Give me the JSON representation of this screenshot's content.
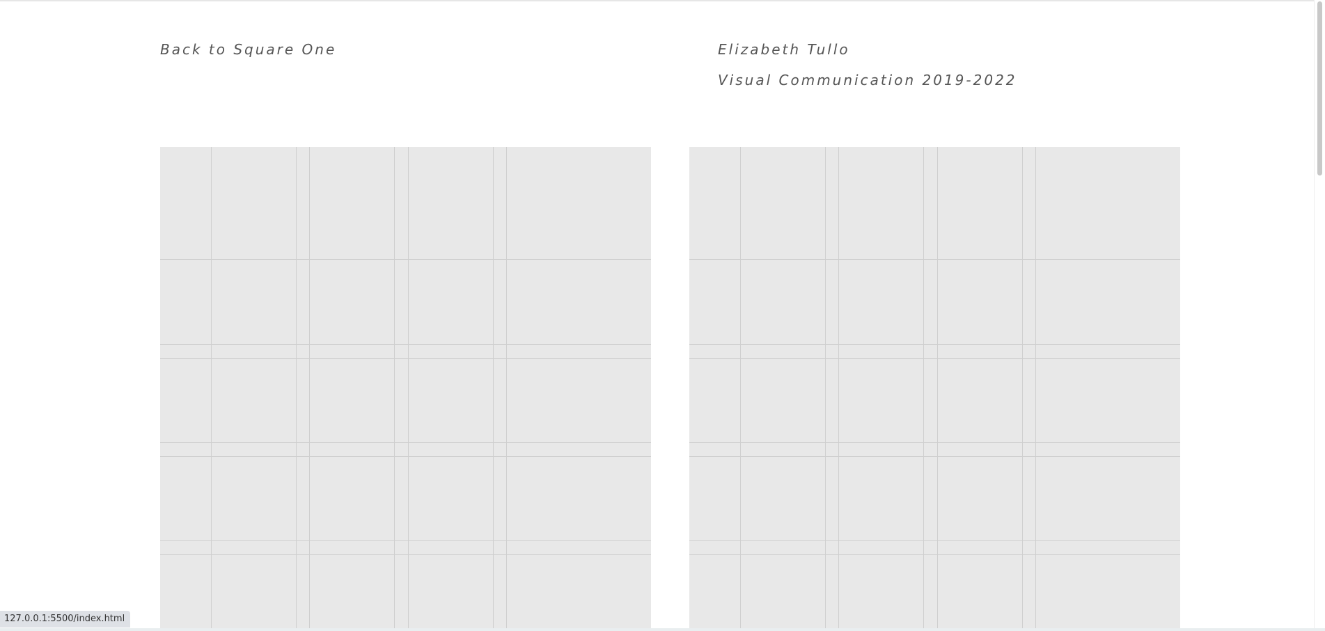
{
  "header": {
    "site_title": "Back to Square One",
    "author": "Elizabeth Tullo",
    "course": "Visual Communication 2019-2022"
  },
  "panels": [
    {
      "name": "grid-panel-left"
    },
    {
      "name": "grid-panel-right"
    }
  ],
  "colors": {
    "panel_background": "#e8e8e8",
    "grid_line": "#cfcfcf",
    "text": "#555555"
  },
  "status_bar": {
    "url": "127.0.0.1:5500/index.html"
  }
}
